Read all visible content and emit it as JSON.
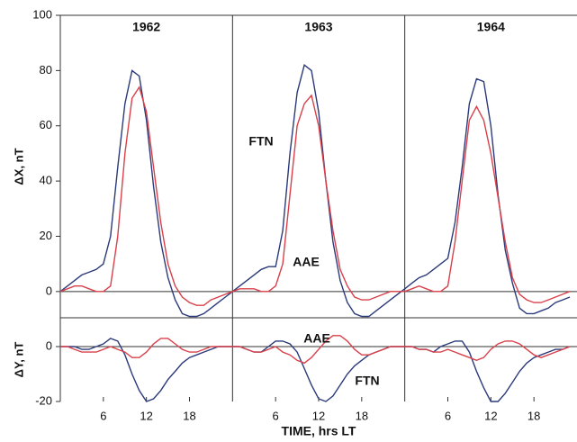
{
  "chart_data": [
    {
      "type": "line",
      "ylabel": "ΔX, nT",
      "years": [
        "1962",
        "1963",
        "1964"
      ],
      "x": [
        0,
        1,
        2,
        3,
        4,
        5,
        6,
        7,
        8,
        9,
        10,
        11,
        12,
        13,
        14,
        15,
        16,
        17,
        18,
        19,
        20,
        21,
        22,
        23,
        24,
        25,
        26,
        27,
        28,
        29,
        30,
        31,
        32,
        33,
        34,
        35,
        36,
        37,
        38,
        39,
        40,
        41,
        42,
        43,
        44,
        45,
        46,
        47,
        48,
        49,
        50,
        51,
        52,
        53,
        54,
        55,
        56,
        57,
        58,
        59,
        60,
        61,
        62,
        63,
        64,
        65,
        66,
        67,
        68,
        69,
        70,
        71
      ],
      "xlim": [
        0,
        72
      ],
      "ylim": [
        -9.5,
        100
      ],
      "yticks": [
        0,
        20,
        40,
        60,
        80,
        100
      ],
      "zero_line": true,
      "series": [
        {
          "name": "FTN",
          "color": "#2b3a7a",
          "values": [
            0,
            2,
            4,
            6,
            7,
            8,
            10,
            20,
            45,
            68,
            80,
            78,
            62,
            38,
            18,
            5,
            -3,
            -8,
            -9,
            -9,
            -8,
            -6,
            -4,
            -2,
            0,
            2,
            4,
            6,
            8,
            9,
            9,
            22,
            50,
            72,
            82,
            80,
            65,
            40,
            18,
            4,
            -4,
            -8,
            -9,
            -9,
            -7,
            -5,
            -3,
            -1,
            1,
            3,
            5,
            6,
            8,
            10,
            12,
            25,
            45,
            68,
            77,
            76,
            60,
            35,
            15,
            3,
            -6,
            -8,
            -8,
            -7,
            -6,
            -4,
            -3,
            -2
          ]
        },
        {
          "name": "AAE",
          "color": "#d9404a",
          "values": [
            0,
            1,
            2,
            2,
            1,
            0,
            0,
            2,
            20,
            50,
            70,
            74,
            65,
            45,
            25,
            10,
            2,
            -2,
            -4,
            -5,
            -5,
            -3,
            -2,
            -1,
            0,
            1,
            1,
            1,
            0,
            0,
            2,
            10,
            35,
            60,
            68,
            71,
            60,
            40,
            22,
            8,
            2,
            -2,
            -3,
            -3,
            -2,
            -1,
            0,
            0,
            0,
            1,
            2,
            1,
            0,
            0,
            2,
            18,
            40,
            62,
            67,
            62,
            50,
            34,
            18,
            5,
            -1,
            -3,
            -4,
            -4,
            -3,
            -2,
            -1,
            0
          ]
        }
      ],
      "annotations": [
        "FTN",
        "AAE"
      ]
    },
    {
      "type": "line",
      "ylabel": "ΔY, nT",
      "xlabel": "TIME, hrs LT",
      "x": [
        0,
        1,
        2,
        3,
        4,
        5,
        6,
        7,
        8,
        9,
        10,
        11,
        12,
        13,
        14,
        15,
        16,
        17,
        18,
        19,
        20,
        21,
        22,
        23,
        24,
        25,
        26,
        27,
        28,
        29,
        30,
        31,
        32,
        33,
        34,
        35,
        36,
        37,
        38,
        39,
        40,
        41,
        42,
        43,
        44,
        45,
        46,
        47,
        48,
        49,
        50,
        51,
        52,
        53,
        54,
        55,
        56,
        57,
        58,
        59,
        60,
        61,
        62,
        63,
        64,
        65,
        66,
        67,
        68,
        69,
        70,
        71
      ],
      "xlim": [
        0,
        72
      ],
      "ylim": [
        -20,
        10.5
      ],
      "yticks": [
        -20,
        0
      ],
      "zero_line": true,
      "xticks": [
        6,
        12,
        18,
        {
          "value": 30,
          "label": "6"
        },
        {
          "value": 36,
          "label": "12"
        },
        {
          "value": 42,
          "label": "18"
        },
        {
          "value": 54,
          "label": "6"
        },
        {
          "value": 60,
          "label": "12"
        },
        {
          "value": 66,
          "label": "18"
        }
      ],
      "series": [
        {
          "name": "FTN",
          "color": "#2b3a7a",
          "values": [
            0,
            0,
            0,
            -1,
            -1,
            0,
            1,
            3,
            2,
            -3,
            -10,
            -16,
            -20,
            -19,
            -16,
            -12,
            -9,
            -6,
            -4,
            -3,
            -2,
            -1,
            0,
            0,
            0,
            0,
            -1,
            -2,
            -2,
            0,
            2,
            2,
            1,
            -2,
            -8,
            -14,
            -19,
            -20,
            -18,
            -14,
            -10,
            -7,
            -5,
            -3,
            -2,
            -1,
            0,
            0,
            0,
            0,
            -1,
            -1,
            -2,
            0,
            1,
            2,
            2,
            -2,
            -9,
            -15,
            -20,
            -20,
            -17,
            -13,
            -9,
            -6,
            -4,
            -3,
            -2,
            -1,
            -1,
            0
          ]
        },
        {
          "name": "AAE",
          "color": "#d9404a",
          "values": [
            0,
            0,
            -1,
            -2,
            -2,
            -2,
            -1,
            0,
            -1,
            -2,
            -4,
            -4,
            -2,
            1,
            3,
            3,
            1,
            -1,
            -2,
            -2,
            -1,
            0,
            0,
            0,
            0,
            0,
            -1,
            -2,
            -2,
            -1,
            0,
            -2,
            -3,
            -5,
            -6,
            -4,
            -1,
            2,
            4,
            4,
            2,
            -1,
            -3,
            -3,
            -2,
            -1,
            0,
            0,
            0,
            0,
            -1,
            -1,
            -2,
            -2,
            -1,
            -2,
            -3,
            -4,
            -5,
            -4,
            -1,
            1,
            2,
            2,
            1,
            -1,
            -3,
            -4,
            -3,
            -2,
            -1,
            0
          ]
        }
      ],
      "annotations": [
        "AAE",
        "FTN"
      ]
    }
  ]
}
